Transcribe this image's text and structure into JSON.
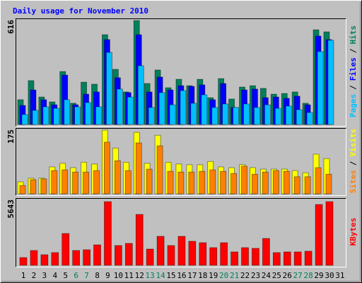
{
  "chart_data": [
    {
      "type": "bar",
      "title": "Daily usage for November 2010",
      "categories": [
        "1",
        "2",
        "3",
        "4",
        "5",
        "6",
        "7",
        "8",
        "9",
        "10",
        "11",
        "12",
        "13",
        "14",
        "15",
        "16",
        "17",
        "18",
        "19",
        "20",
        "21",
        "22",
        "23",
        "24",
        "25",
        "26",
        "27",
        "28",
        "29",
        "30",
        "31"
      ],
      "category_colors": [
        "#000000",
        "#000000",
        "#000000",
        "#000000",
        "#000000",
        "#00805c",
        "#00805c",
        "#000000",
        "#000000",
        "#000000",
        "#000000",
        "#000000",
        "#00805c",
        "#00805c",
        "#000000",
        "#000000",
        "#000000",
        "#000000",
        "#000000",
        "#00805c",
        "#00805c",
        "#000000",
        "#000000",
        "#000000",
        "#000000",
        "#000000",
        "#00805c",
        "#00805c",
        "#000000",
        "#000000",
        "#000000"
      ],
      "legend_separator": "/",
      "ylim": [
        0,
        616
      ],
      "series": [
        {
          "name": "Hits",
          "color": "#00805c",
          "values": [
            147,
            260,
            163,
            134,
            314,
            126,
            251,
            239,
            532,
            327,
            193,
            616,
            243,
            323,
            218,
            268,
            230,
            268,
            159,
            272,
            151,
            222,
            230,
            214,
            180,
            184,
            193,
            126,
            561,
            549,
            null
          ]
        },
        {
          "name": "Files",
          "color": "#0000ff",
          "values": [
            113,
            205,
            147,
            117,
            293,
            117,
            180,
            193,
            503,
            277,
            189,
            532,
            193,
            281,
            205,
            230,
            226,
            235,
            147,
            243,
            101,
            205,
            210,
            159,
            163,
            155,
            168,
            117,
            524,
            503,
            null
          ]
        },
        {
          "name": "Pages",
          "color": "#00c0ff",
          "values": [
            59,
            84,
            105,
            96,
            147,
            105,
            130,
            105,
            427,
            210,
            163,
            348,
            101,
            189,
            117,
            201,
            126,
            176,
            101,
            122,
            101,
            122,
            101,
            117,
            96,
            109,
            88,
            71,
            432,
            499,
            null
          ]
        }
      ]
    },
    {
      "type": "bar",
      "ylim": [
        0,
        175
      ],
      "series": [
        {
          "name": "Visits",
          "color": "#ffff00",
          "values": [
            33,
            43,
            43,
            74,
            84,
            72,
            87,
            82,
            175,
            126,
            87,
            169,
            84,
            161,
            87,
            82,
            80,
            80,
            89,
            74,
            72,
            80,
            72,
            68,
            68,
            68,
            64,
            58,
            109,
            97,
            null
          ]
        },
        {
          "name": "Sites",
          "color": "#ff8000",
          "values": [
            23,
            39,
            41,
            64,
            66,
            60,
            60,
            64,
            142,
            91,
            64,
            140,
            68,
            132,
            62,
            60,
            60,
            62,
            66,
            62,
            56,
            76,
            54,
            60,
            64,
            62,
            47,
            47,
            72,
            54,
            null
          ]
        }
      ]
    },
    {
      "type": "bar",
      "ylim": [
        0,
        5643
      ],
      "series": [
        {
          "name": "KBytes",
          "color": "#ff0000",
          "values": [
            690,
            1317,
            940,
            1129,
            2822,
            1317,
            1380,
            1818,
            5643,
            1756,
            1944,
            4514,
            1442,
            2571,
            1756,
            2571,
            2132,
            2006,
            1568,
            2006,
            1191,
            1568,
            1505,
            2383,
            1129,
            1191,
            1191,
            1254,
            5392,
            5643,
            null
          ]
        }
      ]
    }
  ]
}
